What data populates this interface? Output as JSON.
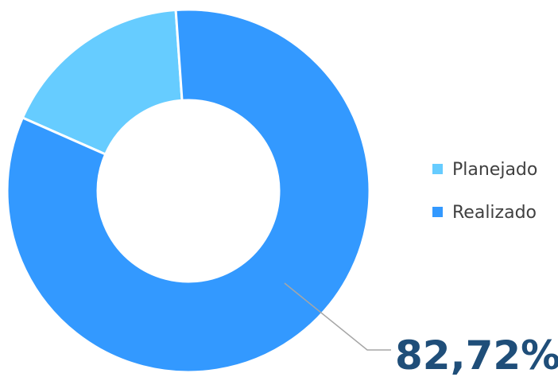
{
  "chart_data": {
    "type": "pie",
    "categories": [
      "Planejado",
      "Realizado"
    ],
    "values": [
      17.28,
      82.72
    ],
    "colors": [
      "#66ccff",
      "#3399ff"
    ],
    "donut": true,
    "legend": {
      "position": "right",
      "items": [
        {
          "label": "Planejado",
          "color": "#66ccff"
        },
        {
          "label": "Realizado",
          "color": "#3399ff"
        }
      ]
    },
    "data_labels": [
      {
        "series": "Realizado",
        "text": "82,72%"
      }
    ]
  }
}
